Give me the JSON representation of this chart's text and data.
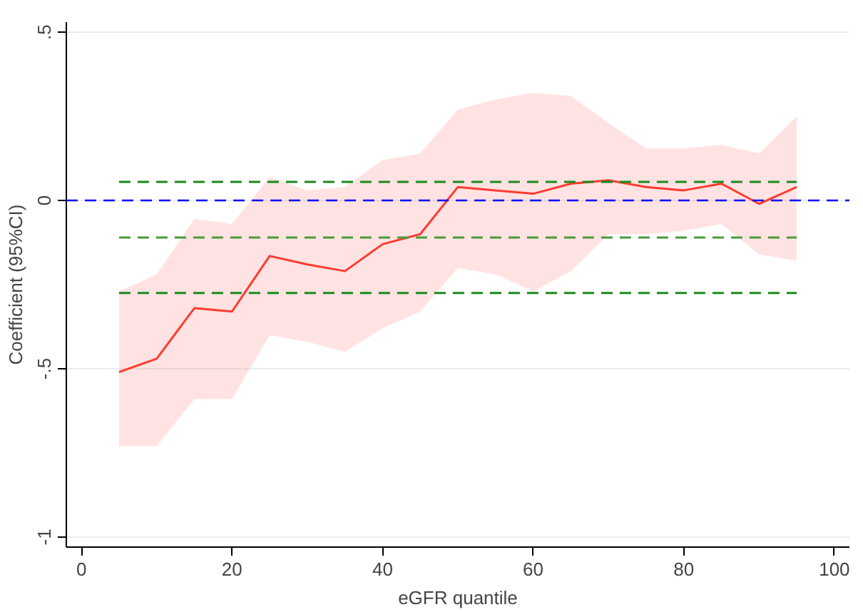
{
  "chart_data": {
    "type": "line",
    "xlabel": "eGFR quantile",
    "ylabel": "Coefficient (95%CI)",
    "xlim": [
      -2,
      102
    ],
    "ylim": [
      -1.03,
      0.53
    ],
    "xticks": [
      0,
      20,
      40,
      60,
      80,
      100
    ],
    "yticks": [
      {
        "value": 0.5,
        "label": ".5"
      },
      0,
      {
        "value": -0.5,
        "label": "-.5"
      },
      -1
    ],
    "grid": "y",
    "marker": "none",
    "ref_lines": [
      {
        "axis": "y",
        "value": 0,
        "color": "#0000ff",
        "line_style": "dashed"
      }
    ],
    "series": [
      {
        "color": "#ff3b30",
        "line_style": "solid",
        "x": [
          5,
          10,
          15,
          20,
          25,
          30,
          35,
          40,
          45,
          50,
          55,
          60,
          65,
          70,
          75,
          80,
          85,
          90,
          95
        ],
        "values": [
          -0.51,
          -0.47,
          -0.32,
          -0.33,
          -0.165,
          -0.19,
          -0.21,
          -0.13,
          -0.1,
          0.04,
          0.03,
          0.02,
          0.05,
          0.06,
          0.04,
          0.03,
          0.05,
          -0.01,
          0.04
        ],
        "lower": [
          -0.73,
          -0.73,
          -0.59,
          -0.59,
          -0.4,
          -0.42,
          -0.45,
          -0.38,
          -0.33,
          -0.2,
          -0.22,
          -0.27,
          -0.21,
          -0.1,
          -0.1,
          -0.09,
          -0.07,
          -0.16,
          -0.18
        ],
        "upper": [
          -0.27,
          -0.22,
          -0.055,
          -0.07,
          0.07,
          0.03,
          0.04,
          0.12,
          0.14,
          0.27,
          0.3,
          0.32,
          0.31,
          0.23,
          0.155,
          0.155,
          0.165,
          0.14,
          0.25
        ]
      },
      {
        "color": "#1a8a1a",
        "line_style": "dashed",
        "x": [
          5,
          95
        ],
        "values": [
          0.055,
          0.055
        ]
      },
      {
        "color": "#4a9a3a",
        "line_style": "dashed",
        "x": [
          5,
          95
        ],
        "values": [
          -0.11,
          -0.11
        ]
      },
      {
        "color": "#1a8a1a",
        "line_style": "dashed",
        "x": [
          5,
          95
        ],
        "values": [
          -0.275,
          -0.275
        ]
      }
    ]
  }
}
